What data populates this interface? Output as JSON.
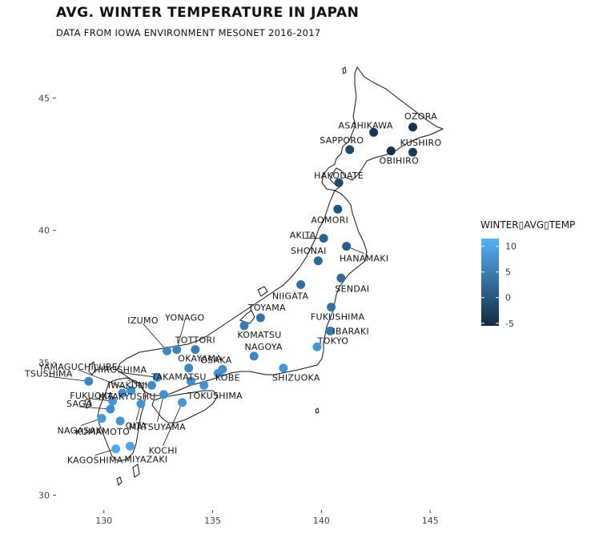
{
  "title": "AVG. WINTER TEMPERATURE IN JAPAN",
  "subtitle": "DATA FROM IOWA ENVIRONMENT MESONET 2016-2017",
  "chart_data": {
    "type": "scatter",
    "xlim": [
      127.8,
      146.5
    ],
    "ylim": [
      29.5,
      46.1
    ],
    "x_ticks": [
      130,
      135,
      140,
      145
    ],
    "y_ticks": [
      30,
      35,
      40,
      45
    ],
    "legend": {
      "title": "WINTER▯AVG▯TEMP",
      "ticks": [
        10,
        5,
        0,
        -5
      ],
      "range": [
        -5.5,
        11.5
      ],
      "color_low": "#132B43",
      "color_high": "#56B1F7",
      "placement": "right"
    },
    "points": [
      {
        "name": "OZORA",
        "lon": 144.2,
        "lat": 43.9,
        "temp": -4.5
      },
      {
        "name": "ASAHIKAWA",
        "lon": 142.4,
        "lat": 43.7,
        "temp": -4.0
      },
      {
        "name": "KUSHIRO",
        "lon": 144.2,
        "lat": 42.95,
        "temp": -3.5
      },
      {
        "name": "SAPPORO",
        "lon": 141.3,
        "lat": 43.05,
        "temp": -2.0
      },
      {
        "name": "OBIHIRO",
        "lon": 143.2,
        "lat": 43.0,
        "temp": -5.0
      },
      {
        "name": "HAKODATE",
        "lon": 140.8,
        "lat": 41.8,
        "temp": -1.5
      },
      {
        "name": "AOMORI",
        "lon": 140.75,
        "lat": 40.8,
        "temp": -0.5
      },
      {
        "name": "AKITA",
        "lon": 140.1,
        "lat": 39.7,
        "temp": 1.5
      },
      {
        "name": "HANAMAKI",
        "lon": 141.15,
        "lat": 39.4,
        "temp": 0.5
      },
      {
        "name": "SHONAI",
        "lon": 139.85,
        "lat": 38.85,
        "temp": 2.0
      },
      {
        "name": "NIIGATA",
        "lon": 139.05,
        "lat": 37.95,
        "temp": 3.0
      },
      {
        "name": "SENDAI",
        "lon": 140.9,
        "lat": 38.2,
        "temp": 2.5
      },
      {
        "name": "FUKUSHIMA",
        "lon": 140.45,
        "lat": 37.1,
        "temp": 3.5
      },
      {
        "name": "TOYAMA",
        "lon": 137.2,
        "lat": 36.7,
        "temp": 3.5
      },
      {
        "name": "KOMATSU",
        "lon": 136.45,
        "lat": 36.4,
        "temp": 4.5
      },
      {
        "name": "IBARAKI",
        "lon": 140.4,
        "lat": 36.2,
        "temp": 4.0
      },
      {
        "name": "TOKYO",
        "lon": 139.8,
        "lat": 35.6,
        "temp": 8.0
      },
      {
        "name": "NAGOYA",
        "lon": 136.9,
        "lat": 35.25,
        "temp": 6.0
      },
      {
        "name": "SHIZUOKA",
        "lon": 138.25,
        "lat": 34.8,
        "temp": 8.0
      },
      {
        "name": "OSAKA",
        "lon": 135.45,
        "lat": 34.75,
        "temp": 7.0
      },
      {
        "name": "KOBE",
        "lon": 135.25,
        "lat": 34.6,
        "temp": 7.5
      },
      {
        "name": "TOTTORI",
        "lon": 134.2,
        "lat": 35.5,
        "temp": 5.0
      },
      {
        "name": "YONAGO",
        "lon": 133.35,
        "lat": 35.5,
        "temp": 5.5
      },
      {
        "name": "IZUMO",
        "lon": 132.9,
        "lat": 35.45,
        "temp": 6.0
      },
      {
        "name": "OKAYAMA",
        "lon": 133.9,
        "lat": 34.8,
        "temp": 6.0
      },
      {
        "name": "TAKAMATSU",
        "lon": 134.0,
        "lat": 34.3,
        "temp": 7.0
      },
      {
        "name": "TOKUSHIMA",
        "lon": 134.6,
        "lat": 34.15,
        "temp": 7.5
      },
      {
        "name": "HIROSHIMA",
        "lon": 132.45,
        "lat": 34.45,
        "temp": 6.0
      },
      {
        "name": "IWAKUNI",
        "lon": 132.2,
        "lat": 34.15,
        "temp": 6.5
      },
      {
        "name": "YAMAGUCHI▯UBE",
        "lon": 131.25,
        "lat": 33.95,
        "temp": 7.0
      },
      {
        "name": "MATSUYAMA",
        "lon": 132.75,
        "lat": 33.8,
        "temp": 7.5
      },
      {
        "name": "KOCHI",
        "lon": 133.6,
        "lat": 33.5,
        "temp": 8.0
      },
      {
        "name": "TSUSHIMA",
        "lon": 129.3,
        "lat": 34.3,
        "temp": 6.0
      },
      {
        "name": "KITAKYUSHU",
        "lon": 130.85,
        "lat": 33.85,
        "temp": 7.0
      },
      {
        "name": "FUKUOKA",
        "lon": 130.4,
        "lat": 33.55,
        "temp": 8.0
      },
      {
        "name": "SAGA",
        "lon": 130.3,
        "lat": 33.25,
        "temp": 7.0
      },
      {
        "name": "OITA",
        "lon": 131.7,
        "lat": 33.45,
        "temp": 7.5
      },
      {
        "name": "NAGASAKI",
        "lon": 129.9,
        "lat": 32.9,
        "temp": 8.5
      },
      {
        "name": "KUMAMOTO",
        "lon": 130.75,
        "lat": 32.8,
        "temp": 8.0
      },
      {
        "name": "KAGOSHIMA",
        "lon": 130.55,
        "lat": 31.75,
        "temp": 10.5
      },
      {
        "name": "MIYAZAKI",
        "lon": 131.2,
        "lat": 31.85,
        "temp": 9.5
      }
    ]
  }
}
